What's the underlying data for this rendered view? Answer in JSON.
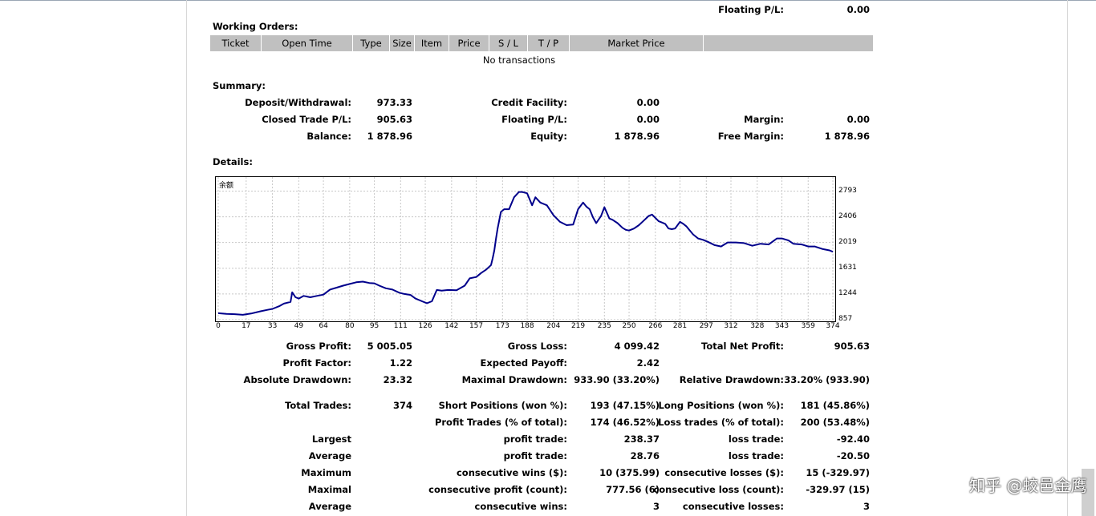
{
  "top": {
    "floating_label": "Floating P/L:",
    "floating_value": "0.00"
  },
  "working_orders": {
    "title": "Working Orders:",
    "columns": [
      "Ticket",
      "Open Time",
      "Type",
      "Size",
      "Item",
      "Price",
      "S / L",
      "T / P",
      "Market Price",
      ""
    ],
    "empty_text": "No transactions"
  },
  "summary": {
    "title": "Summary:",
    "deposit_label": "Deposit/Withdrawal:",
    "deposit_value": "973.33",
    "credit_label": "Credit Facility:",
    "credit_value": "0.00",
    "closed_label": "Closed Trade P/L:",
    "closed_value": "905.63",
    "floating_label": "Floating P/L:",
    "floating_value": "0.00",
    "margin_label": "Margin:",
    "margin_value": "0.00",
    "balance_label": "Balance:",
    "balance_value": "1 878.96",
    "equity_label": "Equity:",
    "equity_value": "1 878.96",
    "free_margin_label": "Free Margin:",
    "free_margin_value": "1 878.96"
  },
  "details": {
    "title": "Details:"
  },
  "chart_data": {
    "type": "line",
    "title": "余额",
    "x_ticks": [
      "0",
      "17",
      "33",
      "49",
      "64",
      "80",
      "95",
      "111",
      "126",
      "142",
      "157",
      "173",
      "188",
      "204",
      "219",
      "235",
      "250",
      "266",
      "281",
      "297",
      "312",
      "328",
      "343",
      "359",
      "374"
    ],
    "y_ticks": [
      "2793",
      "2406",
      "2019",
      "1631",
      "1244",
      "857"
    ],
    "ylim": [
      857,
      2980
    ],
    "xlim": [
      0,
      374
    ],
    "grid": true,
    "line_color": "#00008b",
    "series": [
      {
        "x": [
          0,
          5,
          10,
          15,
          20,
          26,
          30,
          33,
          37,
          40,
          44,
          45,
          47,
          49,
          52,
          56,
          60,
          64,
          68,
          72,
          76,
          80,
          84,
          88,
          92,
          95,
          98,
          102,
          106,
          110,
          113,
          117,
          120,
          124,
          127,
          130,
          133,
          136,
          140,
          145,
          150,
          153,
          157,
          160,
          163,
          166,
          167,
          168,
          169,
          170,
          172,
          174,
          177,
          180,
          183,
          185,
          188,
          191,
          193,
          196,
          200,
          204,
          208,
          212,
          216,
          219,
          222,
          224,
          226,
          228,
          230,
          233,
          235,
          238,
          240,
          243,
          246,
          248,
          250,
          253,
          256,
          259,
          262,
          264,
          266,
          268,
          270,
          272,
          274,
          276,
          278,
          281,
          283,
          285,
          287,
          289,
          292,
          295,
          298,
          302,
          306,
          310,
          315,
          320,
          325,
          330,
          335,
          340,
          343,
          347,
          350,
          355,
          359,
          363,
          368,
          372,
          374
        ],
        "y": [
          955,
          945,
          940,
          930,
          950,
          985,
          1005,
          1020,
          1060,
          1100,
          1125,
          1270,
          1195,
          1175,
          1215,
          1195,
          1215,
          1235,
          1310,
          1340,
          1370,
          1395,
          1420,
          1430,
          1410,
          1405,
          1370,
          1330,
          1310,
          1265,
          1245,
          1230,
          1175,
          1135,
          1105,
          1135,
          1305,
          1295,
          1305,
          1300,
          1370,
          1480,
          1500,
          1560,
          1610,
          1680,
          1780,
          1900,
          2070,
          2230,
          2480,
          2520,
          2520,
          2700,
          2780,
          2780,
          2760,
          2580,
          2700,
          2620,
          2580,
          2430,
          2330,
          2280,
          2290,
          2520,
          2620,
          2560,
          2520,
          2400,
          2310,
          2420,
          2550,
          2380,
          2360,
          2310,
          2240,
          2210,
          2200,
          2230,
          2280,
          2350,
          2420,
          2440,
          2390,
          2340,
          2320,
          2300,
          2230,
          2220,
          2230,
          2330,
          2300,
          2260,
          2200,
          2140,
          2080,
          2060,
          2030,
          1980,
          1960,
          2020,
          2020,
          2010,
          1970,
          2000,
          1990,
          2080,
          2080,
          2050,
          2000,
          1990,
          1960,
          1960,
          1920,
          1900,
          1880
        ]
      }
    ]
  },
  "stats": {
    "gross_profit_label": "Gross Profit:",
    "gross_profit_value": "5 005.05",
    "gross_loss_label": "Gross Loss:",
    "gross_loss_value": "4 099.42",
    "total_net_label": "Total Net Profit:",
    "total_net_value": "905.63",
    "profit_factor_label": "Profit Factor:",
    "profit_factor_value": "1.22",
    "expected_payoff_label": "Expected Payoff:",
    "expected_payoff_value": "2.42",
    "abs_dd_label": "Absolute Drawdown:",
    "abs_dd_value": "23.32",
    "max_dd_label": "Maximal Drawdown:",
    "max_dd_value": "933.90 (33.20%)",
    "rel_dd_label": "Relative Drawdown:",
    "rel_dd_value": "33.20% (933.90)",
    "total_trades_label": "Total Trades:",
    "total_trades_value": "374",
    "short_label": "Short Positions (won %):",
    "short_value": "193 (47.15%)",
    "long_label": "Long Positions (won %):",
    "long_value": "181 (45.86%)",
    "profit_trades_label": "Profit Trades (% of total):",
    "profit_trades_value": "174 (46.52%)",
    "loss_trades_label": "Loss trades (% of total):",
    "loss_trades_value": "200 (53.48%)",
    "largest_label": "Largest",
    "largest_profit_label": "profit trade:",
    "largest_profit_value": "238.37",
    "largest_loss_label": "loss trade:",
    "largest_loss_value": "-92.40",
    "average_label": "Average",
    "avg_profit_label": "profit trade:",
    "avg_profit_value": "28.76",
    "avg_loss_label": "loss trade:",
    "avg_loss_value": "-20.50",
    "maximum_label": "Maximum",
    "cons_wins_label": "consecutive wins ($):",
    "cons_wins_value": "10 (375.99)",
    "cons_losses_label": "consecutive losses ($):",
    "cons_losses_value": "15 (-329.97)",
    "maximal_label": "Maximal",
    "cons_profit_label": "consecutive profit (count):",
    "cons_profit_value": "777.56 (6)",
    "cons_loss_label": "consecutive loss (count):",
    "cons_loss_value": "-329.97 (15)",
    "average2_label": "Average",
    "avg_cons_wins_label": "consecutive wins:",
    "avg_cons_wins_value": "3",
    "avg_cons_losses_label": "consecutive losses:",
    "avg_cons_losses_value": "3"
  },
  "watermark": "知乎 @蛟邑金鹰"
}
